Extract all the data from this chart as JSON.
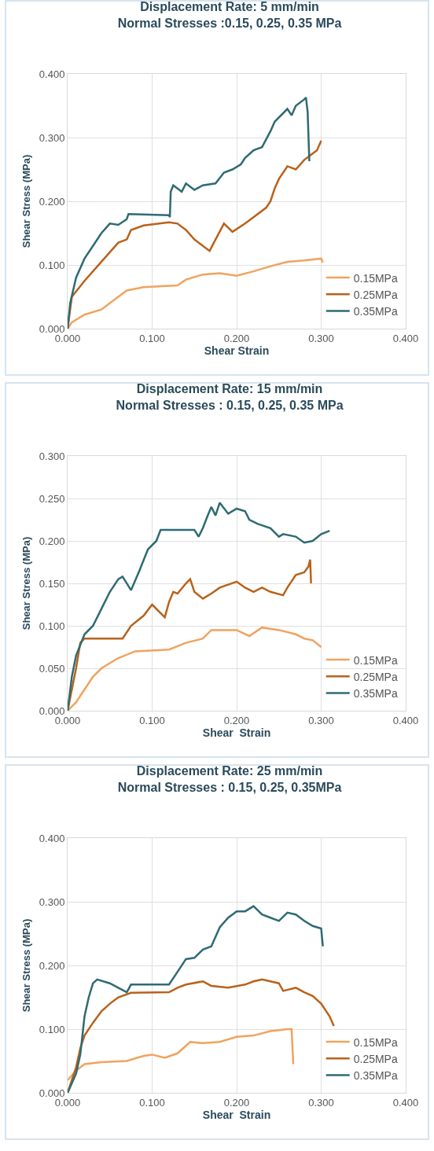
{
  "chart_data": [
    {
      "type": "line",
      "title": "Displacement Rate: 5 mm/min",
      "subtitle": "Normal Stresses :0.15, 0.25, 0.35 MPa",
      "xlabel": "Shear Strain",
      "ylabel": "Shear Stress (MPa)",
      "xlim": [
        0,
        0.4
      ],
      "xticks": [
        {
          "value": 0,
          "label": "0.000"
        },
        {
          "value": 0.1,
          "label": "0.100"
        },
        {
          "value": 0.2,
          "label": "0.200"
        },
        {
          "value": 0.3,
          "label": "0.300"
        },
        {
          "value": 0.4,
          "label": "0.400"
        }
      ],
      "ylim": [
        0,
        0.4
      ],
      "yticks": [
        {
          "value": 0,
          "label": "0.000"
        },
        {
          "value": 0.1,
          "label": "0.100"
        },
        {
          "value": 0.2,
          "label": "0.200"
        },
        {
          "value": 0.3,
          "label": "0.300"
        },
        {
          "value": 0.4,
          "label": "0.400"
        }
      ],
      "grid": true,
      "legend": "bottom right",
      "marker": "none",
      "line_style": "solid",
      "series": [
        {
          "name": "0.15MPa",
          "color": "#f0a35e",
          "x": [
            0,
            0.005,
            0.02,
            0.04,
            0.05,
            0.06,
            0.07,
            0.09,
            0.13,
            0.14,
            0.16,
            0.18,
            0.2,
            0.22,
            0.24,
            0.26,
            0.28,
            0.3,
            0.302
          ],
          "values": [
            0,
            0.01,
            0.022,
            0.03,
            0.04,
            0.05,
            0.06,
            0.065,
            0.068,
            0.077,
            0.085,
            0.087,
            0.083,
            0.09,
            0.098,
            0.105,
            0.107,
            0.11,
            0.104
          ]
        },
        {
          "name": "0.25MPa",
          "color": "#b8621b",
          "x": [
            0,
            0.005,
            0.02,
            0.04,
            0.06,
            0.07,
            0.075,
            0.09,
            0.12,
            0.13,
            0.14,
            0.15,
            0.16,
            0.168,
            0.175,
            0.185,
            0.195,
            0.21,
            0.22,
            0.235,
            0.24,
            0.245,
            0.25,
            0.26,
            0.27,
            0.28,
            0.29,
            0.295,
            0.3
          ],
          "values": [
            0,
            0.05,
            0.075,
            0.105,
            0.135,
            0.14,
            0.155,
            0.162,
            0.167,
            0.165,
            0.155,
            0.14,
            0.13,
            0.122,
            0.14,
            0.165,
            0.152,
            0.165,
            0.175,
            0.19,
            0.2,
            0.22,
            0.235,
            0.255,
            0.25,
            0.265,
            0.275,
            0.28,
            0.295
          ]
        },
        {
          "name": "0.35MPa",
          "color": "#2e6b73",
          "x": [
            0,
            0.003,
            0.01,
            0.02,
            0.03,
            0.04,
            0.05,
            0.06,
            0.07,
            0.072,
            0.12,
            0.121,
            0.122,
            0.125,
            0.13,
            0.135,
            0.14,
            0.15,
            0.16,
            0.175,
            0.185,
            0.195,
            0.205,
            0.21,
            0.22,
            0.23,
            0.24,
            0.245,
            0.26,
            0.265,
            0.27,
            0.28,
            0.282,
            0.284,
            0.286
          ],
          "values": [
            0,
            0.04,
            0.08,
            0.11,
            0.13,
            0.15,
            0.165,
            0.163,
            0.172,
            0.18,
            0.178,
            0.175,
            0.215,
            0.225,
            0.22,
            0.215,
            0.228,
            0.218,
            0.225,
            0.228,
            0.245,
            0.25,
            0.258,
            0.268,
            0.28,
            0.285,
            0.31,
            0.325,
            0.345,
            0.335,
            0.35,
            0.36,
            0.363,
            0.34,
            0.263
          ]
        }
      ]
    },
    {
      "type": "line",
      "title": "Displacement Rate: 15 mm/min",
      "subtitle": "Normal Stresses : 0.15, 0.25, 0.35 MPa",
      "xlabel": "Shear  Strain",
      "ylabel": "Shear Stress (MPa)",
      "xlim": [
        0,
        0.4
      ],
      "xticks": [
        {
          "value": 0,
          "label": "0.000"
        },
        {
          "value": 0.1,
          "label": "0.100"
        },
        {
          "value": 0.2,
          "label": "0.200"
        },
        {
          "value": 0.3,
          "label": "0.300"
        },
        {
          "value": 0.4,
          "label": "0.400"
        }
      ],
      "ylim": [
        0,
        0.3
      ],
      "yticks": [
        {
          "value": 0,
          "label": "0.000"
        },
        {
          "value": 0.05,
          "label": "0.050"
        },
        {
          "value": 0.1,
          "label": "0.100"
        },
        {
          "value": 0.15,
          "label": "0.150"
        },
        {
          "value": 0.2,
          "label": "0.200"
        },
        {
          "value": 0.25,
          "label": "0.250"
        },
        {
          "value": 0.3,
          "label": "0.300"
        }
      ],
      "grid": true,
      "legend": "bottom right",
      "marker": "none",
      "line_style": "solid",
      "series": [
        {
          "name": "0.15MPa",
          "color": "#f0a35e",
          "x": [
            0,
            0.01,
            0.02,
            0.03,
            0.04,
            0.06,
            0.08,
            0.12,
            0.14,
            0.16,
            0.17,
            0.2,
            0.215,
            0.23,
            0.25,
            0.27,
            0.28,
            0.29,
            0.3
          ],
          "values": [
            0,
            0.01,
            0.025,
            0.04,
            0.05,
            0.062,
            0.07,
            0.072,
            0.08,
            0.085,
            0.095,
            0.095,
            0.088,
            0.098,
            0.095,
            0.09,
            0.085,
            0.083,
            0.075
          ]
        },
        {
          "name": "0.25MPa",
          "color": "#b8621b",
          "x": [
            0,
            0.01,
            0.015,
            0.02,
            0.065,
            0.075,
            0.09,
            0.1,
            0.11,
            0.115,
            0.12,
            0.125,
            0.13,
            0.14,
            0.145,
            0.15,
            0.16,
            0.17,
            0.18,
            0.2,
            0.21,
            0.22,
            0.23,
            0.24,
            0.255,
            0.26,
            0.27,
            0.28,
            0.285,
            0.287,
            0.288
          ],
          "values": [
            0,
            0.05,
            0.08,
            0.085,
            0.085,
            0.1,
            0.112,
            0.125,
            0.115,
            0.11,
            0.128,
            0.14,
            0.138,
            0.15,
            0.155,
            0.14,
            0.132,
            0.138,
            0.145,
            0.152,
            0.145,
            0.14,
            0.145,
            0.14,
            0.136,
            0.145,
            0.16,
            0.163,
            0.17,
            0.178,
            0.15
          ]
        },
        {
          "name": "0.35MPa",
          "color": "#2e6b73",
          "x": [
            0,
            0.005,
            0.01,
            0.02,
            0.03,
            0.04,
            0.05,
            0.06,
            0.065,
            0.075,
            0.085,
            0.095,
            0.105,
            0.11,
            0.15,
            0.155,
            0.16,
            0.165,
            0.17,
            0.175,
            0.18,
            0.19,
            0.2,
            0.21,
            0.215,
            0.225,
            0.24,
            0.25,
            0.255,
            0.27,
            0.28,
            0.29,
            0.3,
            0.31
          ],
          "values": [
            0,
            0.04,
            0.065,
            0.09,
            0.1,
            0.12,
            0.14,
            0.155,
            0.158,
            0.142,
            0.165,
            0.19,
            0.2,
            0.213,
            0.213,
            0.205,
            0.215,
            0.228,
            0.24,
            0.23,
            0.245,
            0.232,
            0.238,
            0.235,
            0.225,
            0.22,
            0.215,
            0.205,
            0.208,
            0.205,
            0.198,
            0.2,
            0.208,
            0.212
          ]
        }
      ]
    },
    {
      "type": "line",
      "title": "Displacement Rate: 25 mm/min",
      "subtitle": "Normal Stresses : 0.15, 0.25, 0.35MPa",
      "xlabel": "Shear  Strain",
      "ylabel": "Shear Stress (MPa)",
      "xlim": [
        0,
        0.4
      ],
      "xticks": [
        {
          "value": 0,
          "label": "0.000"
        },
        {
          "value": 0.1,
          "label": "0.100"
        },
        {
          "value": 0.2,
          "label": "0.200"
        },
        {
          "value": 0.3,
          "label": "0.300"
        },
        {
          "value": 0.4,
          "label": "0.400"
        }
      ],
      "ylim": [
        0,
        0.4
      ],
      "yticks": [
        {
          "value": 0,
          "label": "0.000"
        },
        {
          "value": 0.1,
          "label": "0.100"
        },
        {
          "value": 0.2,
          "label": "0.200"
        },
        {
          "value": 0.3,
          "label": "0.300"
        },
        {
          "value": 0.4,
          "label": "0.400"
        }
      ],
      "grid": true,
      "legend": "bottom right",
      "marker": "none",
      "line_style": "solid",
      "series": [
        {
          "name": "0.15MPa",
          "color": "#f0a35e",
          "x": [
            0,
            0.01,
            0.02,
            0.04,
            0.07,
            0.09,
            0.1,
            0.115,
            0.13,
            0.145,
            0.16,
            0.18,
            0.2,
            0.22,
            0.24,
            0.26,
            0.265,
            0.267
          ],
          "values": [
            0.02,
            0.035,
            0.045,
            0.048,
            0.05,
            0.058,
            0.06,
            0.055,
            0.062,
            0.08,
            0.078,
            0.08,
            0.088,
            0.09,
            0.097,
            0.1,
            0.1,
            0.045
          ]
        },
        {
          "name": "0.25MPa",
          "color": "#b8621b",
          "x": [
            0,
            0.01,
            0.015,
            0.02,
            0.03,
            0.04,
            0.05,
            0.06,
            0.075,
            0.12,
            0.13,
            0.14,
            0.16,
            0.17,
            0.19,
            0.21,
            0.22,
            0.23,
            0.25,
            0.255,
            0.27,
            0.28,
            0.29,
            0.3,
            0.31,
            0.315
          ],
          "values": [
            0,
            0.04,
            0.07,
            0.09,
            0.11,
            0.128,
            0.14,
            0.15,
            0.157,
            0.158,
            0.165,
            0.17,
            0.175,
            0.168,
            0.165,
            0.17,
            0.175,
            0.178,
            0.172,
            0.16,
            0.165,
            0.158,
            0.152,
            0.14,
            0.12,
            0.105
          ]
        },
        {
          "name": "0.35MPa",
          "color": "#2e6b73",
          "x": [
            0,
            0.01,
            0.015,
            0.02,
            0.025,
            0.03,
            0.035,
            0.05,
            0.06,
            0.07,
            0.075,
            0.12,
            0.13,
            0.14,
            0.15,
            0.16,
            0.17,
            0.18,
            0.19,
            0.2,
            0.21,
            0.22,
            0.23,
            0.24,
            0.25,
            0.26,
            0.27,
            0.28,
            0.29,
            0.3,
            0.302
          ],
          "values": [
            0,
            0.03,
            0.06,
            0.12,
            0.15,
            0.172,
            0.178,
            0.172,
            0.165,
            0.158,
            0.17,
            0.17,
            0.19,
            0.21,
            0.212,
            0.225,
            0.23,
            0.26,
            0.275,
            0.285,
            0.285,
            0.293,
            0.28,
            0.275,
            0.27,
            0.283,
            0.28,
            0.27,
            0.262,
            0.258,
            0.23
          ]
        }
      ]
    }
  ]
}
